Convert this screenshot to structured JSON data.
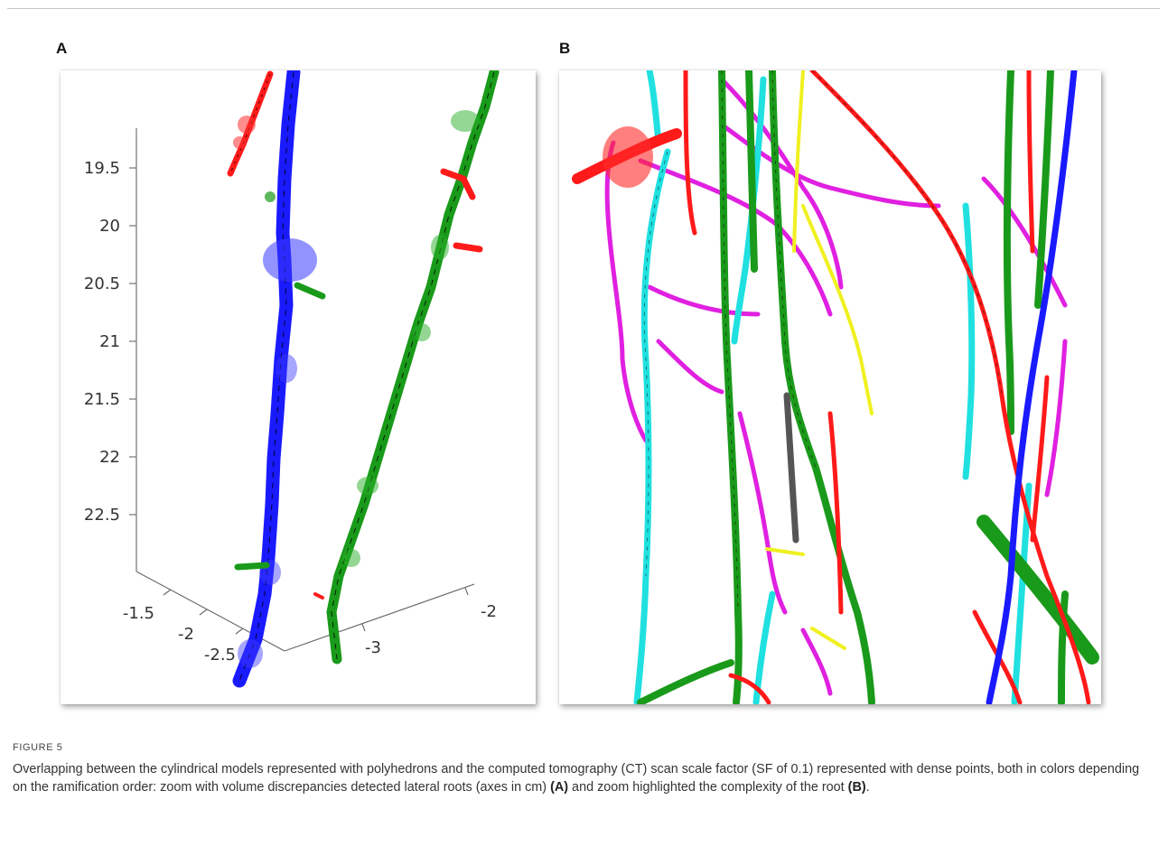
{
  "panels": {
    "a_label": "A",
    "b_label": "B"
  },
  "panel_a_axes": {
    "z_ticks": [
      "19.5",
      "20",
      "20.5",
      "21",
      "21.5",
      "22",
      "22.5"
    ],
    "x_ticks": [
      "-1.5",
      "-2",
      "-2.5"
    ],
    "y_ticks": [
      "-3",
      "-2"
    ]
  },
  "colors": {
    "order_1": "#1a1aff",
    "order_2": "#1a9a1a",
    "order_3": "#ff1a1a",
    "order_4": "#e020e0",
    "order_5": "#20e0e0",
    "order_6": "#f0f020",
    "order_7": "#555555",
    "axis": "#555555"
  },
  "caption": {
    "label": "FIGURE 5",
    "text_1": "Overlapping between the cylindrical models represented with polyhedrons and the computed tomography (CT) scan scale factor (SF of 0.1) represented with dense points, both in colors depending on the ramification order: zoom with volume discrepancies detected lateral roots (axes in cm) ",
    "ref_a": "(A)",
    "text_2": " and zoom highlighted the complexity of the root ",
    "ref_b": "(B)",
    "text_3": "."
  }
}
